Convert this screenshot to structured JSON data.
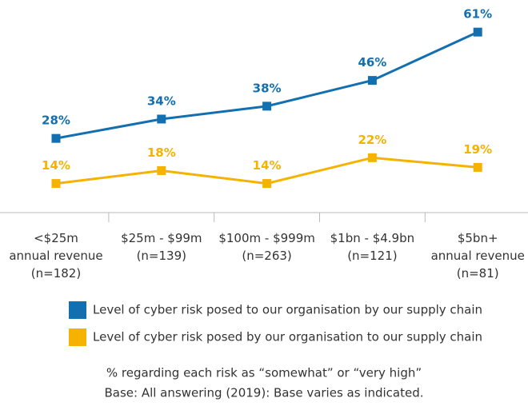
{
  "chart_data": {
    "type": "line",
    "categories": [
      "<$25m\nannual revenue\n(n=182)",
      "$25m - $99m\n(n=139)",
      "$100m - $999m\n(n=263)",
      "$1bn - $4.9bn\n(n=121)",
      "$5bn+\nannual revenue\n(n=81)"
    ],
    "series": [
      {
        "name": "Level of cyber risk posed to our organisation by our supply chain",
        "color": "#1270b0",
        "values": [
          28,
          34,
          38,
          46,
          61
        ],
        "value_labels": [
          "28%",
          "34%",
          "38%",
          "46%",
          "61%"
        ]
      },
      {
        "name": "Level of cyber risk posed by our organisation to our supply chain",
        "color": "#f5b300",
        "values": [
          14,
          18,
          14,
          22,
          19
        ],
        "value_labels": [
          "14%",
          "18%",
          "14%",
          "22%",
          "19%"
        ]
      }
    ],
    "notes": [
      "% regarding each risk as “somewhat” or “very high”",
      "Base: All answering (2019): Base varies as indicated."
    ]
  }
}
